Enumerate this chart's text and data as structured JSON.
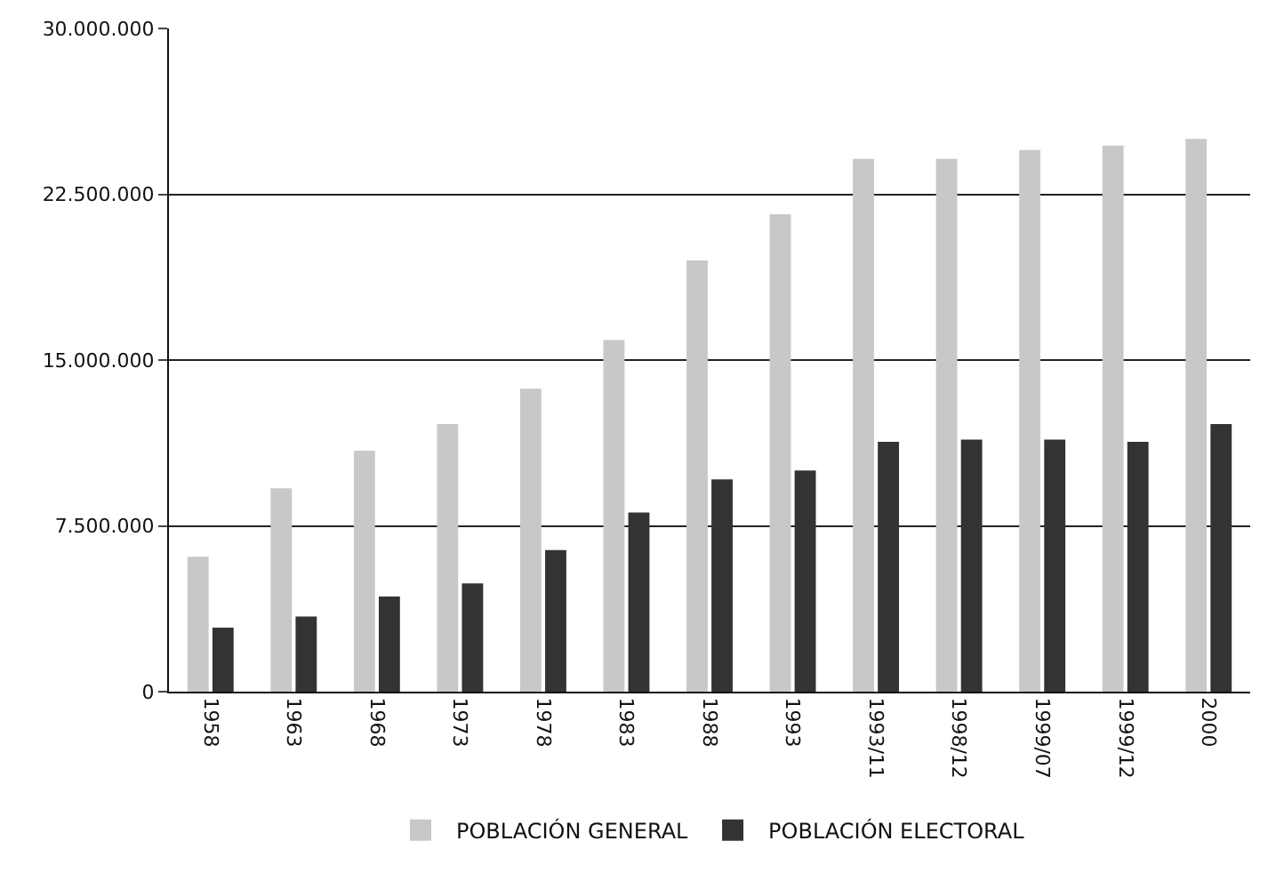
{
  "chart_data": {
    "type": "bar",
    "categories": [
      "1958",
      "1963",
      "1968",
      "1973",
      "1978",
      "1983",
      "1988",
      "1993",
      "1993/11",
      "1998/12",
      "1999/07",
      "1999/12",
      "2000"
    ],
    "series": [
      {
        "name": "POBLACIÓN GENERAL",
        "color": "#c8c8c8",
        "values": [
          6100000,
          9200000,
          10900000,
          12100000,
          13700000,
          15900000,
          19500000,
          21600000,
          24100000,
          24100000,
          24500000,
          24700000,
          25000000
        ]
      },
      {
        "name": "POBLACIÓN ELECTORAL",
        "color": "#333333",
        "values": [
          2900000,
          3400000,
          4300000,
          4900000,
          6400000,
          8100000,
          9600000,
          10000000,
          11300000,
          11400000,
          11400000,
          11300000,
          12100000
        ]
      }
    ],
    "ylim": [
      0,
      30000000
    ],
    "yticks": [
      {
        "value": 0,
        "label": "0"
      },
      {
        "value": 7500000,
        "label": "7.500.000"
      },
      {
        "value": 15000000,
        "label": "15.000.000"
      },
      {
        "value": 22500000,
        "label": "22.500.000"
      },
      {
        "value": 30000000,
        "label": "30.000.000"
      }
    ],
    "grid": "y",
    "legend": "bottom"
  }
}
